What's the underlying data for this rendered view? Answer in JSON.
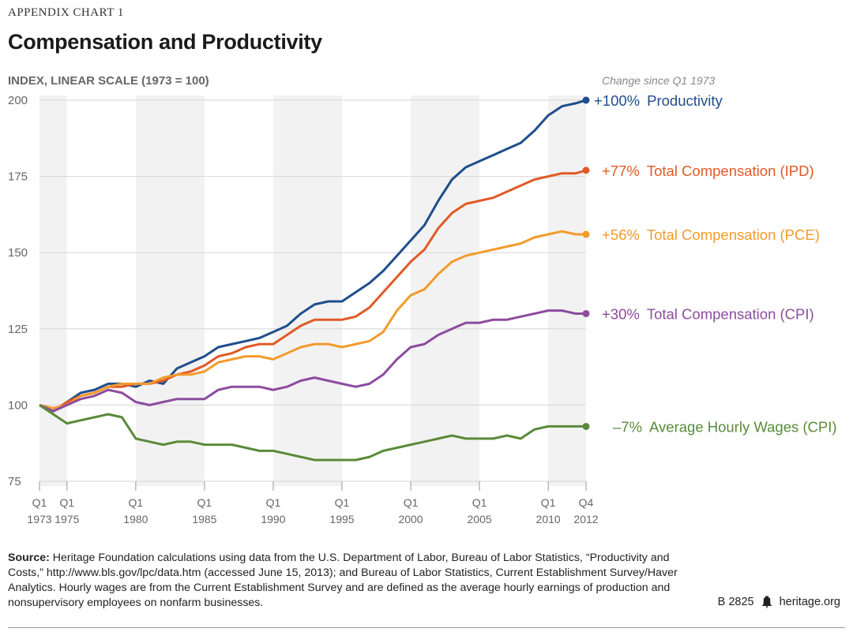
{
  "header": {
    "kicker": "APPENDIX CHART 1",
    "title": "Compensation and Productivity",
    "y_axis_label": "INDEX, LINEAR SCALE (1973 = 100)",
    "change_header": "Change since Q1 1973"
  },
  "chart_data": {
    "type": "line",
    "title": "Compensation and Productivity",
    "ylabel": "INDEX, LINEAR SCALE (1973 = 100)",
    "xlabel": "",
    "ylim": [
      75,
      200
    ],
    "xlim": [
      1973.0,
      2012.75
    ],
    "yticks": [
      75,
      100,
      125,
      150,
      175,
      200
    ],
    "xticks": [
      {
        "x": 1973.0,
        "quarter": "Q1",
        "year": "1973"
      },
      {
        "x": 1975.0,
        "quarter": "Q1",
        "year": "1975"
      },
      {
        "x": 1980.0,
        "quarter": "Q1",
        "year": "1980"
      },
      {
        "x": 1985.0,
        "quarter": "Q1",
        "year": "1985"
      },
      {
        "x": 1990.0,
        "quarter": "Q1",
        "year": "1990"
      },
      {
        "x": 1995.0,
        "quarter": "Q1",
        "year": "1995"
      },
      {
        "x": 2000.0,
        "quarter": "Q1",
        "year": "2000"
      },
      {
        "x": 2005.0,
        "quarter": "Q1",
        "year": "2005"
      },
      {
        "x": 2010.0,
        "quarter": "Q1",
        "year": "2010"
      },
      {
        "x": 2012.75,
        "quarter": "Q4",
        "year": "2012"
      }
    ],
    "shaded_bands": [
      [
        1973.0,
        1975.0
      ],
      [
        1980.0,
        1985.0
      ],
      [
        1990.0,
        1995.0
      ],
      [
        2000.0,
        2005.0
      ],
      [
        2010.0,
        2012.75
      ]
    ],
    "series": [
      {
        "name": "Productivity",
        "change": "+100%",
        "color": "#1f4e8c",
        "points": [
          [
            1973,
            100
          ],
          [
            1974,
            98
          ],
          [
            1975,
            101
          ],
          [
            1976,
            104
          ],
          [
            1977,
            105
          ],
          [
            1978,
            107
          ],
          [
            1979,
            107
          ],
          [
            1980,
            106
          ],
          [
            1981,
            108
          ],
          [
            1982,
            107
          ],
          [
            1983,
            112
          ],
          [
            1984,
            114
          ],
          [
            1985,
            116
          ],
          [
            1986,
            119
          ],
          [
            1987,
            120
          ],
          [
            1988,
            121
          ],
          [
            1989,
            122
          ],
          [
            1990,
            124
          ],
          [
            1991,
            126
          ],
          [
            1992,
            130
          ],
          [
            1993,
            133
          ],
          [
            1994,
            134
          ],
          [
            1995,
            134
          ],
          [
            1996,
            137
          ],
          [
            1997,
            140
          ],
          [
            1998,
            144
          ],
          [
            1999,
            149
          ],
          [
            2000,
            154
          ],
          [
            2001,
            159
          ],
          [
            2002,
            167
          ],
          [
            2003,
            174
          ],
          [
            2004,
            178
          ],
          [
            2005,
            180
          ],
          [
            2006,
            182
          ],
          [
            2007,
            184
          ],
          [
            2008,
            186
          ],
          [
            2009,
            190
          ],
          [
            2010,
            195
          ],
          [
            2011,
            198
          ],
          [
            2012,
            199
          ],
          [
            2012.75,
            200
          ]
        ]
      },
      {
        "name": "Total Compensation (IPD)",
        "change": "+77%",
        "color": "#e05a26",
        "points": [
          [
            1973,
            100
          ],
          [
            1974,
            98
          ],
          [
            1975,
            101
          ],
          [
            1976,
            103
          ],
          [
            1977,
            104
          ],
          [
            1978,
            106
          ],
          [
            1979,
            106
          ],
          [
            1980,
            107
          ],
          [
            1981,
            107
          ],
          [
            1982,
            108
          ],
          [
            1983,
            110
          ],
          [
            1984,
            111
          ],
          [
            1985,
            113
          ],
          [
            1986,
            116
          ],
          [
            1987,
            117
          ],
          [
            1988,
            119
          ],
          [
            1989,
            120
          ],
          [
            1990,
            120
          ],
          [
            1991,
            123
          ],
          [
            1992,
            126
          ],
          [
            1993,
            128
          ],
          [
            1994,
            128
          ],
          [
            1995,
            128
          ],
          [
            1996,
            129
          ],
          [
            1997,
            132
          ],
          [
            1998,
            137
          ],
          [
            1999,
            142
          ],
          [
            2000,
            147
          ],
          [
            2001,
            151
          ],
          [
            2002,
            158
          ],
          [
            2003,
            163
          ],
          [
            2004,
            166
          ],
          [
            2005,
            167
          ],
          [
            2006,
            168
          ],
          [
            2007,
            170
          ],
          [
            2008,
            172
          ],
          [
            2009,
            174
          ],
          [
            2010,
            175
          ],
          [
            2011,
            176
          ],
          [
            2012,
            176
          ],
          [
            2012.75,
            177
          ]
        ]
      },
      {
        "name": "Total Compensation (PCE)",
        "change": "+56%",
        "color": "#f29b2c",
        "points": [
          [
            1973,
            100
          ],
          [
            1974,
            99
          ],
          [
            1975,
            100
          ],
          [
            1976,
            103
          ],
          [
            1977,
            104
          ],
          [
            1978,
            106
          ],
          [
            1979,
            107
          ],
          [
            1980,
            107
          ],
          [
            1981,
            107
          ],
          [
            1982,
            109
          ],
          [
            1983,
            110
          ],
          [
            1984,
            110
          ],
          [
            1985,
            111
          ],
          [
            1986,
            114
          ],
          [
            1987,
            115
          ],
          [
            1988,
            116
          ],
          [
            1989,
            116
          ],
          [
            1990,
            115
          ],
          [
            1991,
            117
          ],
          [
            1992,
            119
          ],
          [
            1993,
            120
          ],
          [
            1994,
            120
          ],
          [
            1995,
            119
          ],
          [
            1996,
            120
          ],
          [
            1997,
            121
          ],
          [
            1998,
            124
          ],
          [
            1999,
            131
          ],
          [
            2000,
            136
          ],
          [
            2001,
            138
          ],
          [
            2002,
            143
          ],
          [
            2003,
            147
          ],
          [
            2004,
            149
          ],
          [
            2005,
            150
          ],
          [
            2006,
            151
          ],
          [
            2007,
            152
          ],
          [
            2008,
            153
          ],
          [
            2009,
            155
          ],
          [
            2010,
            156
          ],
          [
            2011,
            157
          ],
          [
            2012,
            156
          ],
          [
            2012.75,
            156
          ]
        ]
      },
      {
        "name": "Total Compensation (CPI)",
        "change": "+30%",
        "color": "#8c4c9e",
        "points": [
          [
            1973,
            100
          ],
          [
            1974,
            98
          ],
          [
            1975,
            100
          ],
          [
            1976,
            102
          ],
          [
            1977,
            103
          ],
          [
            1978,
            105
          ],
          [
            1979,
            104
          ],
          [
            1980,
            101
          ],
          [
            1981,
            100
          ],
          [
            1982,
            101
          ],
          [
            1983,
            102
          ],
          [
            1984,
            102
          ],
          [
            1985,
            102
          ],
          [
            1986,
            105
          ],
          [
            1987,
            106
          ],
          [
            1988,
            106
          ],
          [
            1989,
            106
          ],
          [
            1990,
            105
          ],
          [
            1991,
            106
          ],
          [
            1992,
            108
          ],
          [
            1993,
            109
          ],
          [
            1994,
            108
          ],
          [
            1995,
            107
          ],
          [
            1996,
            106
          ],
          [
            1997,
            107
          ],
          [
            1998,
            110
          ],
          [
            1999,
            115
          ],
          [
            2000,
            119
          ],
          [
            2001,
            120
          ],
          [
            2002,
            123
          ],
          [
            2003,
            125
          ],
          [
            2004,
            127
          ],
          [
            2005,
            127
          ],
          [
            2006,
            128
          ],
          [
            2007,
            128
          ],
          [
            2008,
            129
          ],
          [
            2009,
            130
          ],
          [
            2010,
            131
          ],
          [
            2011,
            131
          ],
          [
            2012,
            130
          ],
          [
            2012.75,
            130
          ]
        ]
      },
      {
        "name": "Average Hourly Wages (CPI)",
        "change": "–7%",
        "color": "#5a8a3a",
        "points": [
          [
            1973,
            100
          ],
          [
            1974,
            97
          ],
          [
            1975,
            94
          ],
          [
            1976,
            95
          ],
          [
            1977,
            96
          ],
          [
            1978,
            97
          ],
          [
            1979,
            96
          ],
          [
            1980,
            89
          ],
          [
            1981,
            88
          ],
          [
            1982,
            87
          ],
          [
            1983,
            88
          ],
          [
            1984,
            88
          ],
          [
            1985,
            87
          ],
          [
            1986,
            87
          ],
          [
            1987,
            87
          ],
          [
            1988,
            86
          ],
          [
            1989,
            85
          ],
          [
            1990,
            85
          ],
          [
            1991,
            84
          ],
          [
            1992,
            83
          ],
          [
            1993,
            82
          ],
          [
            1994,
            82
          ],
          [
            1995,
            82
          ],
          [
            1996,
            82
          ],
          [
            1997,
            83
          ],
          [
            1998,
            85
          ],
          [
            1999,
            86
          ],
          [
            2000,
            87
          ],
          [
            2001,
            88
          ],
          [
            2002,
            89
          ],
          [
            2003,
            90
          ],
          [
            2004,
            89
          ],
          [
            2005,
            89
          ],
          [
            2006,
            89
          ],
          [
            2007,
            90
          ],
          [
            2008,
            89
          ],
          [
            2009,
            92
          ],
          [
            2010,
            93
          ],
          [
            2011,
            93
          ],
          [
            2012,
            93
          ],
          [
            2012.75,
            93
          ]
        ]
      }
    ],
    "end_labels": [
      {
        "series": "Productivity",
        "change": "+100%",
        "label": "Productivity"
      },
      {
        "series": "Total Compensation (IPD)",
        "change": "+77%",
        "label": "Total Compensation (IPD)"
      },
      {
        "series": "Total Compensation (PCE)",
        "change": "+56%",
        "label": "Total Compensation (PCE)"
      },
      {
        "series": "Total Compensation (CPI)",
        "change": "+30%",
        "label": "Total Compensation (CPI)"
      },
      {
        "series": "Average Hourly Wages (CPI)",
        "change": "–7%",
        "label": "Average Hourly Wages (CPI)"
      }
    ]
  },
  "footer": {
    "source_label": "Source:",
    "source_text": " Heritage Foundation calculations using data from the U.S. Department of Labor, Bureau of Labor Statistics, “Productivity and Costs,” http://www.bls.gov/lpc/data.htm (accessed June 15, 2013); and Bureau of Labor Statistics, Current Establishment Survey/Haver Analytics. Hourly wages are from the Current Establishment Survey and are defined as the average hourly earnings of production and nonsupervisory employees on nonfarm businesses.",
    "report_id": "B 2825",
    "site": "heritage.org",
    "logo_icon": "liberty-bell-icon"
  }
}
